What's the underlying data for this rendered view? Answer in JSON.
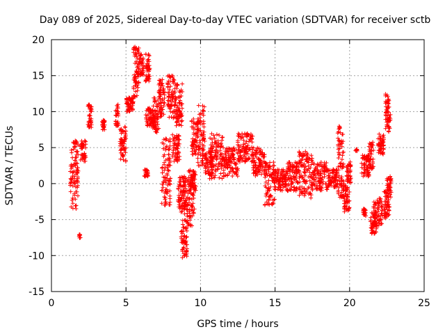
{
  "chart_data": {
    "type": "scatter",
    "title": "Day 089 of 2025, Sidereal Day-to-day VTEC variation (SDTVAR) for receiver sctb",
    "xlabel": "GPS time / hours",
    "ylabel": "SDTVAR / TECUs",
    "xlim": [
      0,
      25
    ],
    "ylim": [
      -15,
      20
    ],
    "x_ticks": [
      0,
      5,
      10,
      15,
      20,
      25
    ],
    "y_ticks": [
      -15,
      -10,
      -5,
      0,
      5,
      10,
      15,
      20
    ],
    "grid": true,
    "marker": "+",
    "series": [
      {
        "name": "SDTVAR",
        "color": "#ff0000",
        "segments": [
          {
            "x": [
              1.25,
              1.8
            ],
            "y": [
              -3.5,
              6
            ]
          },
          {
            "x": [
              1.85,
              1.95
            ],
            "y": [
              -7.6,
              -7.0
            ]
          },
          {
            "x": [
              1.95,
              2.3
            ],
            "y": [
              3,
              6
            ]
          },
          {
            "x": [
              2.45,
              2.7
            ],
            "y": [
              7.5,
              11
            ]
          },
          {
            "x": [
              3.4,
              3.6
            ],
            "y": [
              7.5,
              9
            ]
          },
          {
            "x": [
              4.3,
              4.5
            ],
            "y": [
              8,
              11
            ]
          },
          {
            "x": [
              4.6,
              5.0
            ],
            "y": [
              3,
              8
            ]
          },
          {
            "x": [
              5.0,
              5.5
            ],
            "y": [
              10,
              12
            ]
          },
          {
            "x": [
              5.5,
              5.9
            ],
            "y": [
              12,
              19
            ]
          },
          {
            "x": [
              5.9,
              6.2
            ],
            "y": [
              15,
              18
            ]
          },
          {
            "x": [
              6.2,
              6.5
            ],
            "y": [
              1,
              2
            ]
          },
          {
            "x": [
              6.3,
              6.6
            ],
            "y": [
              14,
              18
            ]
          },
          {
            "x": [
              6.3,
              7.0
            ],
            "y": [
              8,
              10.5
            ]
          },
          {
            "x": [
              6.8,
              7.2
            ],
            "y": [
              7,
              12
            ]
          },
          {
            "x": [
              7.2,
              7.6
            ],
            "y": [
              9,
              14.5
            ]
          },
          {
            "x": [
              7.4,
              8.0
            ],
            "y": [
              -3,
              6.5
            ]
          },
          {
            "x": [
              7.8,
              8.3
            ],
            "y": [
              9,
              15
            ]
          },
          {
            "x": [
              8.1,
              8.6
            ],
            "y": [
              3,
              7
            ]
          },
          {
            "x": [
              8.3,
              8.8
            ],
            "y": [
              8,
              14
            ]
          },
          {
            "x": [
              8.5,
              9.0
            ],
            "y": [
              -4,
              1
            ]
          },
          {
            "x": [
              8.7,
              9.1
            ],
            "y": [
              -10.3,
              -6
            ]
          },
          {
            "x": [
              8.8,
              9.6
            ],
            "y": [
              -6,
              1
            ]
          },
          {
            "x": [
              9.2,
              9.7
            ],
            "y": [
              -1,
              2
            ]
          },
          {
            "x": [
              9.4,
              9.8
            ],
            "y": [
              4,
              9
            ]
          },
          {
            "x": [
              9.8,
              10.3
            ],
            "y": [
              2.5,
              11
            ]
          },
          {
            "x": [
              10.3,
              10.8
            ],
            "y": [
              1,
              4.5
            ]
          },
          {
            "x": [
              10.6,
              11.5
            ],
            "y": [
              0.5,
              7
            ]
          },
          {
            "x": [
              11.5,
              12.5
            ],
            "y": [
              1,
              5
            ]
          },
          {
            "x": [
              12.5,
              13.5
            ],
            "y": [
              3,
              7
            ]
          },
          {
            "x": [
              13.5,
              14.3
            ],
            "y": [
              1,
              5
            ]
          },
          {
            "x": [
              14.3,
              15.0
            ],
            "y": [
              -3,
              3
            ]
          },
          {
            "x": [
              15.0,
              15.8
            ],
            "y": [
              -1,
              2
            ]
          },
          {
            "x": [
              15.8,
              16.6
            ],
            "y": [
              -1,
              3
            ]
          },
          {
            "x": [
              16.6,
              17.5
            ],
            "y": [
              -2,
              4.5
            ]
          },
          {
            "x": [
              17.5,
              18.5
            ],
            "y": [
              -1,
              3
            ]
          },
          {
            "x": [
              18.5,
              19.2
            ],
            "y": [
              -0.5,
              2
            ]
          },
          {
            "x": [
              19.2,
              19.6
            ],
            "y": [
              -2,
              8
            ]
          },
          {
            "x": [
              19.6,
              20.0
            ],
            "y": [
              -4,
              0
            ]
          },
          {
            "x": [
              19.8,
              20.1
            ],
            "y": [
              0,
              3
            ]
          },
          {
            "x": [
              20.4,
              20.5
            ],
            "y": [
              4.5,
              4.8
            ]
          },
          {
            "x": [
              20.8,
              21.3
            ],
            "y": [
              1,
              4
            ]
          },
          {
            "x": [
              20.9,
              21.1
            ],
            "y": [
              -4.5,
              -3.5
            ]
          },
          {
            "x": [
              21.3,
              21.6
            ],
            "y": [
              2,
              6
            ]
          },
          {
            "x": [
              21.4,
              21.8
            ],
            "y": [
              -7,
              -4
            ]
          },
          {
            "x": [
              21.6,
              22.2
            ],
            "y": [
              -6,
              -2
            ]
          },
          {
            "x": [
              21.9,
              22.3
            ],
            "y": [
              4,
              7
            ]
          },
          {
            "x": [
              22.3,
              22.7
            ],
            "y": [
              -5,
              -1
            ]
          },
          {
            "x": [
              22.4,
              22.75
            ],
            "y": [
              7,
              12.5
            ]
          },
          {
            "x": [
              22.5,
              22.8
            ],
            "y": [
              -2,
              1
            ]
          }
        ]
      }
    ]
  }
}
